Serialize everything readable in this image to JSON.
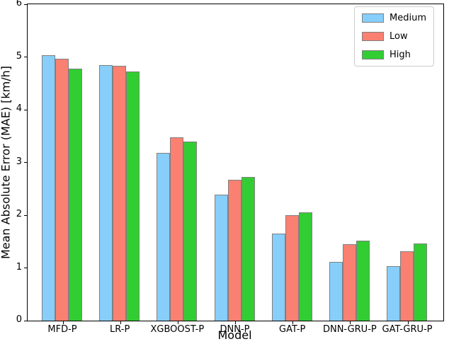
{
  "chart_data": {
    "type": "bar",
    "title": "",
    "xlabel": "Model",
    "ylabel": "Mean Absolute Error (MAE) [km/h]",
    "ylim": [
      0,
      6
    ],
    "yticks": [
      0,
      1,
      2,
      3,
      4,
      5,
      6
    ],
    "grid": false,
    "legend_position": "upper right",
    "bar_edge_color": "#808080",
    "categories": [
      "MFD-P",
      "LR-P",
      "XGBOOST-P",
      "DNN-P",
      "GAT-P",
      "DNN-GRU-P",
      "GAT-GRU-P"
    ],
    "series": [
      {
        "name": "Medium",
        "color": "#87CEFA",
        "values": [
          5.04,
          4.84,
          3.18,
          2.39,
          1.65,
          1.12,
          1.04
        ]
      },
      {
        "name": "Low",
        "color": "#FA8072",
        "values": [
          4.97,
          4.83,
          3.47,
          2.67,
          2.0,
          1.45,
          1.32
        ]
      },
      {
        "name": "High",
        "color": "#32CD32",
        "values": [
          4.78,
          4.73,
          3.4,
          2.73,
          2.06,
          1.52,
          1.46
        ]
      }
    ]
  }
}
